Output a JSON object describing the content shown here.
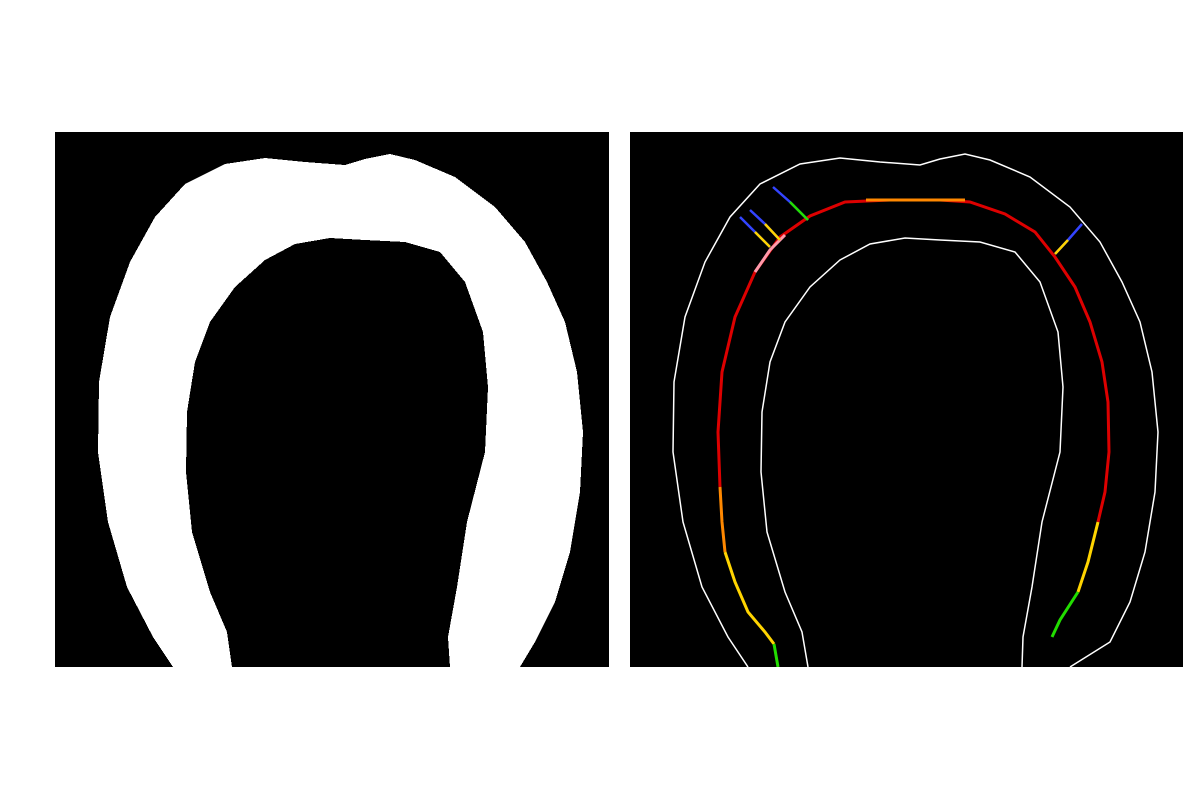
{
  "figure": {
    "panels": [
      {
        "id": "binary-mask",
        "kind": "segmentation-mask"
      },
      {
        "id": "skeleton-overlay",
        "kind": "contour-with-medial-axis"
      }
    ],
    "colors": {
      "background": "#ffffff",
      "panel_background": "#000000",
      "mask_fill": "#ffffff",
      "contour": "#ffffff",
      "axis_red": "#dd0000",
      "axis_orange": "#ff8800",
      "axis_yellow": "#ffd400",
      "axis_green": "#22dd00",
      "axis_blue": "#3344ff",
      "axis_pink": "#ff99aa"
    }
  }
}
